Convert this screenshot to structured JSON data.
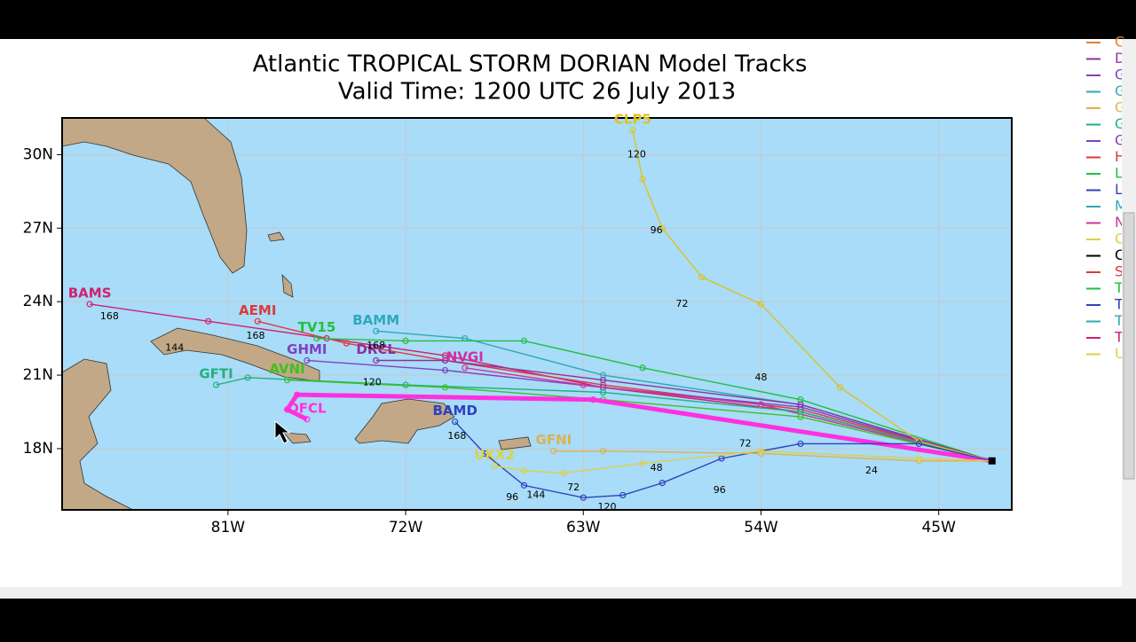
{
  "map": {
    "title": "Atlantic TROPICAL STORM DORIAN Model Tracks",
    "subtitle": "Valid Time: 1200 UTC 26 July 2013",
    "lonlim": [
      -89.4,
      -41.3
    ],
    "latlim": [
      15.5,
      31.5
    ],
    "lon_ticks": [
      {
        "value": -81,
        "label": "81W"
      },
      {
        "value": -72,
        "label": "72W"
      },
      {
        "value": -63,
        "label": "63W"
      },
      {
        "value": -54,
        "label": "54W"
      },
      {
        "value": -45,
        "label": "45W"
      }
    ],
    "lat_ticks": [
      {
        "value": 18,
        "label": "18N"
      },
      {
        "value": 21,
        "label": "21N"
      },
      {
        "value": 24,
        "label": "24N"
      },
      {
        "value": 27,
        "label": "27N"
      },
      {
        "value": 30,
        "label": "30N"
      }
    ],
    "tracks": [
      {
        "name": "BAMS",
        "color": "#d02070",
        "lon": [
          -42.3,
          -52,
          -62,
          -70,
          -76,
          -82,
          -88
        ],
        "lat": [
          17.5,
          19.5,
          20.5,
          21.8,
          22.5,
          23.2,
          23.9
        ]
      },
      {
        "name": "AEMI",
        "color": "#e03838",
        "lon": [
          -42.3,
          -52,
          -62,
          -70,
          -75,
          -79.5
        ],
        "lat": [
          17.5,
          19.6,
          20.6,
          21.6,
          22.3,
          23.2
        ]
      },
      {
        "name": "BAMM",
        "color": "#30a8b8",
        "lon": [
          -42.3,
          -52,
          -62,
          -69,
          -73.5
        ],
        "lat": [
          17.5,
          19.8,
          21,
          22.5,
          22.8
        ]
      },
      {
        "name": "TV15",
        "color": "#20c040",
        "lon": [
          -42.3,
          -52,
          -60,
          -66,
          -72,
          -76.5
        ],
        "lat": [
          17.5,
          20,
          21.3,
          22.4,
          22.4,
          22.5
        ]
      },
      {
        "name": "GHMI",
        "color": "#8040c0",
        "lon": [
          -42.3,
          -52,
          -62,
          -70,
          -77
        ],
        "lat": [
          17.5,
          19.7,
          20.5,
          21.2,
          21.6
        ]
      },
      {
        "name": "DRCL",
        "color": "#9030a0",
        "lon": [
          -42.3,
          -52,
          -62,
          -70,
          -73.5
        ],
        "lat": [
          17.5,
          19.8,
          20.8,
          21.6,
          21.6
        ]
      },
      {
        "name": "NVGI",
        "color": "#d030a0",
        "lon": [
          -42.3,
          -54,
          -63,
          -69
        ],
        "lat": [
          17.5,
          19.8,
          20.6,
          21.3
        ]
      },
      {
        "name": "GFTI",
        "color": "#20b080",
        "lon": [
          -42.3,
          -52,
          -62,
          -72,
          -80,
          -81.6
        ],
        "lat": [
          17.5,
          19.5,
          20.3,
          20.6,
          20.9,
          20.6
        ]
      },
      {
        "name": "AVNI",
        "color": "#40c020",
        "lon": [
          -42.3,
          -52,
          -62,
          -70,
          -78
        ],
        "lat": [
          17.5,
          19.3,
          20,
          20.5,
          20.8
        ]
      },
      {
        "name": "OFCL",
        "color": "#ff30e0",
        "lon": [
          -42.3,
          -62.5,
          -77.5,
          -78,
          -77
        ],
        "lat": [
          17.5,
          20,
          20.2,
          19.6,
          19.2
        ]
      },
      {
        "name": "CLP5",
        "color": "#e0c020",
        "lon": [
          -42.3,
          -46,
          -50,
          -54,
          -57,
          -59,
          -60,
          -60.5
        ],
        "lat": [
          17.5,
          18.3,
          20.5,
          23.9,
          25,
          27,
          29,
          31
        ]
      },
      {
        "name": "BAMD",
        "color": "#3040c0",
        "lon": [
          -42.3,
          -46,
          -52,
          -56,
          -59,
          -61,
          -63,
          -66,
          -68,
          -69.5
        ],
        "lat": [
          17.5,
          18.2,
          18.2,
          17.6,
          16.6,
          16.1,
          16,
          16.5,
          17.8,
          19.1
        ]
      },
      {
        "name": "GFNI",
        "color": "#e0b050",
        "lon": [
          -42.3,
          -46,
          -54,
          -62,
          -64.5
        ],
        "lat": [
          17.5,
          17.5,
          17.8,
          17.9,
          17.9
        ]
      },
      {
        "name": "UKX2",
        "color": "#e0d040",
        "lon": [
          -42.3,
          -46,
          -54,
          -60,
          -64,
          -66,
          -67.5
        ],
        "lat": [
          17.5,
          17.6,
          17.9,
          17.4,
          17,
          17.1,
          17.3
        ]
      }
    ],
    "hour_labels": [
      {
        "text": "120",
        "lon": -60.3,
        "lat": 30.0
      },
      {
        "text": "96",
        "lon": -59.3,
        "lat": 26.9
      },
      {
        "text": "72",
        "lon": -58.0,
        "lat": 23.9
      },
      {
        "text": "48",
        "lon": -54,
        "lat": 20.9
      },
      {
        "text": "168",
        "lon": -87,
        "lat": 23.4
      },
      {
        "text": "144",
        "lon": -83.7,
        "lat": 22.1
      },
      {
        "text": "168",
        "lon": -79.6,
        "lat": 22.6
      },
      {
        "text": "168",
        "lon": -73.5,
        "lat": 22.2
      },
      {
        "text": "120",
        "lon": -73.7,
        "lat": 20.7
      },
      {
        "text": "120",
        "lon": -61.8,
        "lat": 15.6
      },
      {
        "text": "144",
        "lon": -65.4,
        "lat": 16.1
      },
      {
        "text": "96",
        "lon": -66.6,
        "lat": 16.0
      },
      {
        "text": "168",
        "lon": -69.4,
        "lat": 18.5
      },
      {
        "text": "96",
        "lon": -56.1,
        "lat": 16.3
      },
      {
        "text": "72",
        "lon": -54.8,
        "lat": 18.2
      },
      {
        "text": "24",
        "lon": -48.4,
        "lat": 17.1
      },
      {
        "text": "48",
        "lon": -59.3,
        "lat": 17.2
      },
      {
        "text": "72",
        "lon": -63.5,
        "lat": 16.4
      }
    ],
    "start": {
      "lon": -42.3,
      "lat": 17.5
    },
    "legend": [
      {
        "text": "C",
        "color": "#e08030"
      },
      {
        "text": "D",
        "color": "#9030a0"
      },
      {
        "text": "G",
        "color": "#8040c0"
      },
      {
        "text": "G",
        "color": "#30a8b8"
      },
      {
        "text": "G",
        "color": "#e0b050"
      },
      {
        "text": "G",
        "color": "#20b080"
      },
      {
        "text": "G",
        "color": "#8040c0"
      },
      {
        "text": "H",
        "color": "#e03838"
      },
      {
        "text": "L",
        "color": "#20c040"
      },
      {
        "text": "L",
        "color": "#3040c0"
      },
      {
        "text": "M",
        "color": "#30a8b8"
      },
      {
        "text": "N",
        "color": "#d030a0"
      },
      {
        "text": "O",
        "color": "#e0d040"
      },
      {
        "text": "C",
        "color": "#000000"
      },
      {
        "text": "S",
        "color": "#e03838"
      },
      {
        "text": "T",
        "color": "#20c040"
      },
      {
        "text": "T",
        "color": "#3040c0"
      },
      {
        "text": "T",
        "color": "#30a8b8"
      },
      {
        "text": "T",
        "color": "#d02070"
      },
      {
        "text": "U",
        "color": "#e0d040"
      }
    ]
  }
}
